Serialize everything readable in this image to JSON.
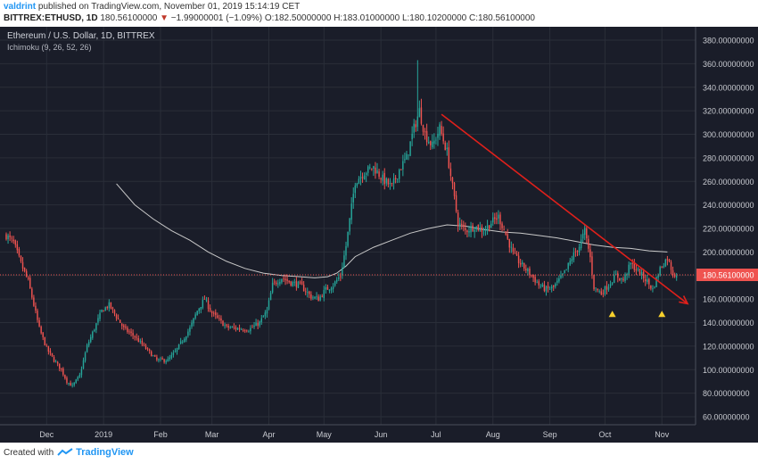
{
  "header": {
    "user": "valdrint",
    "published": "published on TradingView.com, November 01, 2019 15:14:19 CET",
    "symbol": "BITTREX:ETHUSD, 1D",
    "last": "180.56100000",
    "arrow": "▼",
    "change": "−1.99000001 (−1.09%)",
    "o_label": "O:",
    "o": "182.50000000",
    "h_label": "H:",
    "h": "183.01000000",
    "l_label": "L:",
    "l": "180.10200000",
    "c_label": "C:",
    "c": "180.56100000"
  },
  "footer": {
    "created_with": "Created with",
    "brand": "TradingView"
  },
  "chart_data": {
    "type": "candlestick",
    "title": "Ethereum / U.S. Dollar, 1D, BITTREX",
    "indicator": "Ichimoku (9, 26, 52, 26)",
    "ylim": [
      60,
      380
    ],
    "y_ticks": [
      60,
      80,
      100,
      120,
      140,
      160,
      180,
      200,
      220,
      240,
      260,
      280,
      300,
      320,
      340,
      360,
      380
    ],
    "x_ticks": [
      {
        "label": "Dec",
        "t": 22
      },
      {
        "label": "2019",
        "t": 53
      },
      {
        "label": "Feb",
        "t": 84
      },
      {
        "label": "Mar",
        "t": 112
      },
      {
        "label": "Apr",
        "t": 143
      },
      {
        "label": "May",
        "t": 173
      },
      {
        "label": "Jun",
        "t": 204
      },
      {
        "label": "Jul",
        "t": 234
      },
      {
        "label": "Aug",
        "t": 265
      },
      {
        "label": "Sep",
        "t": 296
      },
      {
        "label": "Oct",
        "t": 326
      },
      {
        "label": "Nov",
        "t": 357
      }
    ],
    "t_range": [
      0,
      370
    ],
    "close_path": [
      [
        0,
        214
      ],
      [
        4,
        208
      ],
      [
        8,
        190
      ],
      [
        12,
        175
      ],
      [
        18,
        135
      ],
      [
        22,
        118
      ],
      [
        26,
        108
      ],
      [
        30,
        100
      ],
      [
        33,
        90
      ],
      [
        36,
        86
      ],
      [
        40,
        95
      ],
      [
        44,
        120
      ],
      [
        48,
        135
      ],
      [
        52,
        150
      ],
      [
        56,
        155
      ],
      [
        60,
        145
      ],
      [
        64,
        135
      ],
      [
        70,
        128
      ],
      [
        76,
        118
      ],
      [
        82,
        108
      ],
      [
        88,
        108
      ],
      [
        92,
        115
      ],
      [
        96,
        125
      ],
      [
        100,
        135
      ],
      [
        104,
        150
      ],
      [
        108,
        160
      ],
      [
        112,
        148
      ],
      [
        116,
        142
      ],
      [
        120,
        136
      ],
      [
        126,
        135
      ],
      [
        132,
        134
      ],
      [
        138,
        140
      ],
      [
        142,
        150
      ],
      [
        145,
        172
      ],
      [
        150,
        178
      ],
      [
        155,
        174
      ],
      [
        160,
        172
      ],
      [
        166,
        162
      ],
      [
        170,
        160
      ],
      [
        174,
        168
      ],
      [
        178,
        172
      ],
      [
        182,
        180
      ],
      [
        185,
        205
      ],
      [
        190,
        260
      ],
      [
        195,
        268
      ],
      [
        200,
        272
      ],
      [
        205,
        262
      ],
      [
        210,
        255
      ],
      [
        214,
        270
      ],
      [
        218,
        280
      ],
      [
        222,
        305
      ],
      [
        225,
        320
      ],
      [
        228,
        300
      ],
      [
        232,
        290
      ],
      [
        236,
        305
      ],
      [
        240,
        285
      ],
      [
        243,
        255
      ],
      [
        246,
        225
      ],
      [
        250,
        218
      ],
      [
        255,
        222
      ],
      [
        260,
        218
      ],
      [
        264,
        225
      ],
      [
        268,
        230
      ],
      [
        272,
        215
      ],
      [
        276,
        198
      ],
      [
        280,
        190
      ],
      [
        285,
        182
      ],
      [
        290,
        172
      ],
      [
        294,
        168
      ],
      [
        298,
        170
      ],
      [
        302,
        178
      ],
      [
        305,
        185
      ],
      [
        308,
        195
      ],
      [
        312,
        205
      ],
      [
        315,
        218
      ],
      [
        318,
        195
      ],
      [
        320,
        170
      ],
      [
        324,
        165
      ],
      [
        328,
        172
      ],
      [
        332,
        180
      ],
      [
        336,
        176
      ],
      [
        340,
        190
      ],
      [
        345,
        182
      ],
      [
        349,
        175
      ],
      [
        352,
        168
      ],
      [
        356,
        186
      ],
      [
        360,
        195
      ],
      [
        363,
        182
      ],
      [
        365,
        180.5
      ]
    ],
    "ma_line": [
      [
        60,
        258
      ],
      [
        70,
        240
      ],
      [
        80,
        228
      ],
      [
        90,
        218
      ],
      [
        100,
        210
      ],
      [
        110,
        200
      ],
      [
        120,
        192
      ],
      [
        130,
        186
      ],
      [
        140,
        182
      ],
      [
        150,
        180
      ],
      [
        160,
        179
      ],
      [
        168,
        178
      ],
      [
        175,
        179
      ],
      [
        180,
        182
      ],
      [
        185,
        188
      ],
      [
        190,
        196
      ],
      [
        200,
        204
      ],
      [
        210,
        210
      ],
      [
        220,
        216
      ],
      [
        230,
        220
      ],
      [
        240,
        223
      ],
      [
        250,
        222
      ],
      [
        260,
        219
      ],
      [
        270,
        217
      ],
      [
        280,
        216
      ],
      [
        290,
        214
      ],
      [
        300,
        212
      ],
      [
        310,
        209
      ],
      [
        320,
        206
      ],
      [
        330,
        204
      ],
      [
        340,
        203
      ],
      [
        350,
        201
      ],
      [
        360,
        200
      ]
    ],
    "trendline": {
      "color": "#e0201b",
      "from": {
        "t": 237,
        "price": 317
      },
      "to": {
        "t": 371,
        "price": 156
      }
    },
    "last_price_line": {
      "price": 180.561,
      "label": "180.56100000",
      "color": "#ef5350"
    },
    "markers": [
      {
        "t": 330,
        "price": 147,
        "shape": "triangle-up",
        "color": "#f7d02c"
      },
      {
        "t": 357,
        "price": 147,
        "shape": "triangle-up",
        "color": "#f7d02c"
      }
    ],
    "colors": {
      "background": "#1a1d29",
      "up": "#26a69a",
      "down": "#ef5350",
      "ma": "#c9c9c9",
      "grid": "#2a2e39",
      "axis_text": "#c8cad0"
    }
  }
}
